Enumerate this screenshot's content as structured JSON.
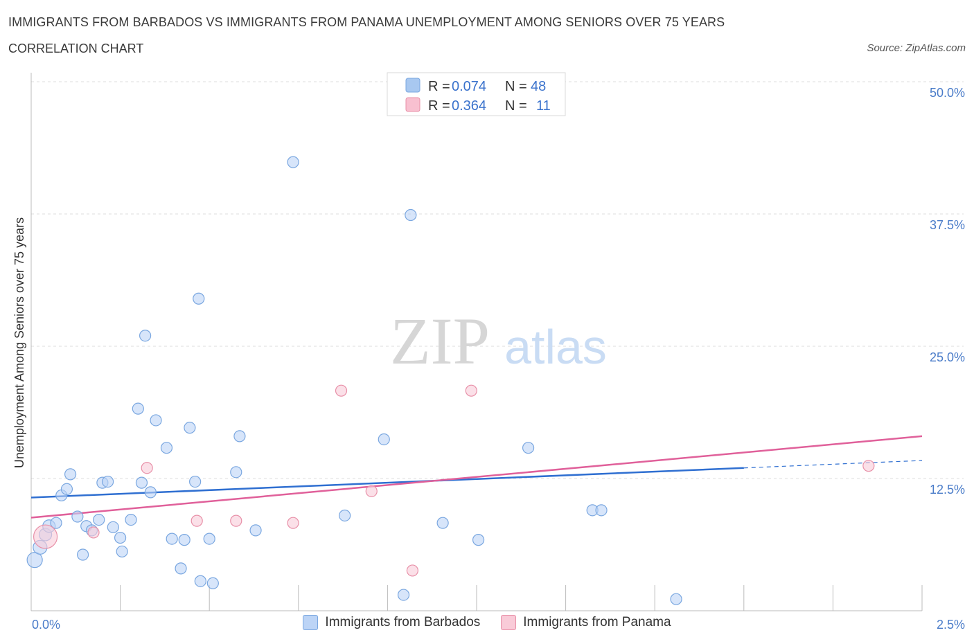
{
  "header": {
    "title": "IMMIGRANTS FROM BARBADOS VS IMMIGRANTS FROM PANAMA UNEMPLOYMENT AMONG SENIORS OVER 75 YEARS",
    "subtitle": "CORRELATION CHART",
    "source": "Source: ZipAtlas.com"
  },
  "watermark": {
    "zip": "ZIP",
    "atlas": "atlas"
  },
  "legend": {
    "rows": [
      {
        "r_label": "R =",
        "r_value": "0.074",
        "n_label": "N =",
        "n_value": "48",
        "color": "#a8c8f0",
        "border": "#7aa7e0"
      },
      {
        "r_label": "R =",
        "r_value": "0.364",
        "n_label": "N =",
        "n_value": "11",
        "color": "#f8c0d0",
        "border": "#e890a8"
      }
    ]
  },
  "bottom_legend": [
    {
      "label": "Immigrants from Barbados",
      "color": "#bcd4f6",
      "border": "#7aa7e0"
    },
    {
      "label": "Immigrants from Panama",
      "color": "#f9cbd8",
      "border": "#e890a8"
    }
  ],
  "chart_data": {
    "type": "scatter",
    "title": "IMMIGRANTS FROM BARBADOS VS IMMIGRANTS FROM PANAMA UNEMPLOYMENT AMONG SENIORS OVER 75 YEARS",
    "xlabel": "",
    "ylabel": "Unemployment Among Seniors over 75 years",
    "xlim": [
      0,
      2.5
    ],
    "ylim": [
      0,
      50
    ],
    "x_tick_labels": {
      "min": "0.0%",
      "max": "2.5%"
    },
    "y_ticks": [
      12.5,
      25.0,
      37.5,
      50.0
    ],
    "y_tick_labels": [
      "12.5%",
      "25.0%",
      "37.5%",
      "50.0%"
    ],
    "series": [
      {
        "name": "Immigrants from Barbados",
        "color": "#7aa7e0",
        "fill": "#bcd4f6",
        "trend": {
          "x0": 0.0,
          "y0": 10.7,
          "x1": 2.0,
          "y1": 13.5,
          "dash_x1": 2.5,
          "dash_y1": 14.2,
          "color": "#2f6fd1"
        },
        "points": [
          [
            0.01,
            4.8,
            22
          ],
          [
            0.025,
            6.0,
            20
          ],
          [
            0.04,
            7.2,
            18
          ],
          [
            0.05,
            8.0,
            18
          ],
          [
            0.07,
            8.3,
            16
          ],
          [
            0.085,
            10.9,
            16
          ],
          [
            0.1,
            11.5,
            16
          ],
          [
            0.11,
            12.9,
            16
          ],
          [
            0.13,
            8.9,
            16
          ],
          [
            0.145,
            5.3,
            16
          ],
          [
            0.155,
            8.0,
            16
          ],
          [
            0.17,
            7.6,
            16
          ],
          [
            0.19,
            8.6,
            16
          ],
          [
            0.2,
            12.1,
            16
          ],
          [
            0.215,
            12.2,
            16
          ],
          [
            0.23,
            7.9,
            16
          ],
          [
            0.25,
            6.9,
            16
          ],
          [
            0.255,
            5.6,
            16
          ],
          [
            0.28,
            8.6,
            16
          ],
          [
            0.3,
            19.1,
            16
          ],
          [
            0.31,
            12.1,
            16
          ],
          [
            0.32,
            26.0,
            16
          ],
          [
            0.335,
            11.2,
            16
          ],
          [
            0.35,
            18.0,
            16
          ],
          [
            0.38,
            15.4,
            16
          ],
          [
            0.395,
            6.8,
            16
          ],
          [
            0.42,
            4.0,
            16
          ],
          [
            0.43,
            6.7,
            16
          ],
          [
            0.445,
            17.3,
            16
          ],
          [
            0.46,
            12.2,
            16
          ],
          [
            0.47,
            29.5,
            16
          ],
          [
            0.475,
            2.8,
            16
          ],
          [
            0.5,
            6.8,
            16
          ],
          [
            0.51,
            2.6,
            16
          ],
          [
            0.575,
            13.1,
            16
          ],
          [
            0.585,
            16.5,
            16
          ],
          [
            0.63,
            7.6,
            16
          ],
          [
            0.735,
            42.4,
            16
          ],
          [
            0.88,
            9.0,
            16
          ],
          [
            0.99,
            16.2,
            16
          ],
          [
            1.045,
            1.5,
            16
          ],
          [
            1.065,
            37.4,
            16
          ],
          [
            1.155,
            8.3,
            16
          ],
          [
            1.255,
            6.7,
            16
          ],
          [
            1.395,
            15.4,
            16
          ],
          [
            1.575,
            9.5,
            16
          ],
          [
            1.6,
            9.5,
            16
          ],
          [
            1.81,
            1.1,
            16
          ]
        ]
      },
      {
        "name": "Immigrants from Panama",
        "color": "#e890a8",
        "fill": "#f9cbd8",
        "trend": {
          "x0": 0.0,
          "y0": 8.8,
          "x1": 2.5,
          "y1": 16.5,
          "color": "#e0609a"
        },
        "points": [
          [
            0.04,
            7.0,
            34
          ],
          [
            0.175,
            7.4,
            16
          ],
          [
            0.325,
            13.5,
            16
          ],
          [
            0.465,
            8.5,
            16
          ],
          [
            0.575,
            8.5,
            16
          ],
          [
            0.735,
            8.3,
            16
          ],
          [
            0.87,
            20.8,
            16
          ],
          [
            0.955,
            11.3,
            16
          ],
          [
            1.07,
            3.8,
            16
          ],
          [
            1.235,
            20.8,
            16
          ],
          [
            2.35,
            13.7,
            16
          ]
        ]
      }
    ]
  }
}
